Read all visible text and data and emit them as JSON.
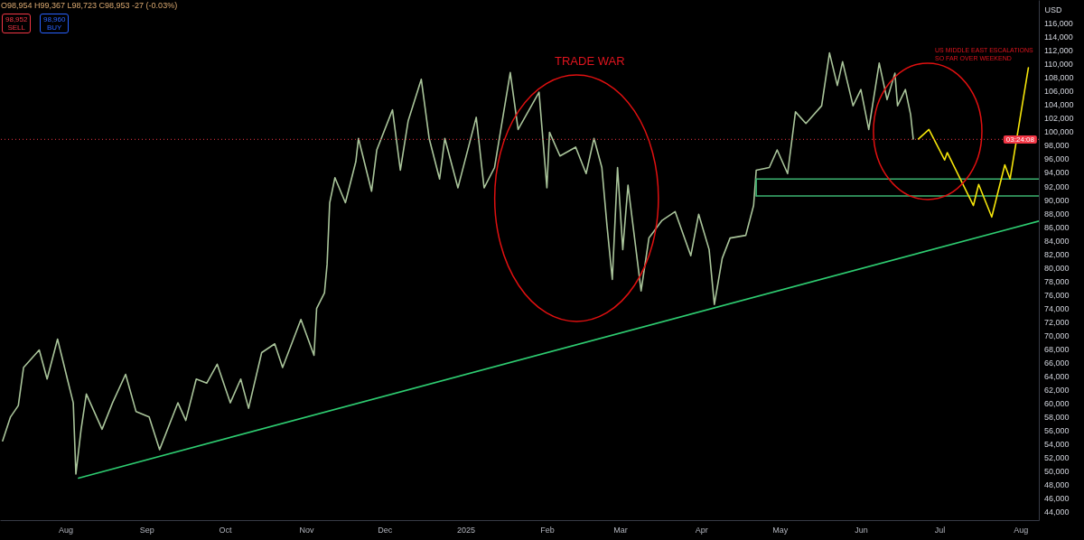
{
  "chart_data": {
    "type": "line",
    "ylabel": "USD",
    "annotations": [
      "O98,954 H99,367 L98,723 C98,953 -27 (-0.03%)",
      "98,952",
      "SELL",
      "98,960",
      "BUY",
      "TRADE WAR",
      "US MIDDLE EAST ESCALATIONS",
      "SO FAR OVER WEEKEND",
      "03:24:08"
    ],
    "xlim": [
      "2024-07-07",
      "2025-08-08"
    ],
    "xticks": [
      {
        "value": "2024-08-01",
        "label": "Aug"
      },
      {
        "value": "2024-09-01",
        "label": "Sep"
      },
      {
        "value": "2024-10-01",
        "label": "Oct"
      },
      {
        "value": "2024-11-01",
        "label": "Nov"
      },
      {
        "value": "2024-12-01",
        "label": "Dec"
      },
      {
        "value": "2025-01-01",
        "label": "2025"
      },
      {
        "value": "2025-02-01",
        "label": "Feb"
      },
      {
        "value": "2025-03-01",
        "label": "Mar"
      },
      {
        "value": "2025-04-01",
        "label": "Apr"
      },
      {
        "value": "2025-05-01",
        "label": "May"
      },
      {
        "value": "2025-06-01",
        "label": "Jun"
      },
      {
        "value": "2025-07-01",
        "label": "Jul"
      },
      {
        "value": "2025-08-01",
        "label": "Aug"
      }
    ],
    "ylim": [
      42800,
      119500
    ],
    "yticks": [
      {
        "value": 44000,
        "label": "44,000"
      },
      {
        "value": 46000,
        "label": "46,000"
      },
      {
        "value": 48000,
        "label": "48,000"
      },
      {
        "value": 50000,
        "label": "50,000"
      },
      {
        "value": 52000,
        "label": "52,000"
      },
      {
        "value": 54000,
        "label": "54,000"
      },
      {
        "value": 56000,
        "label": "56,000"
      },
      {
        "value": 58000,
        "label": "58,000"
      },
      {
        "value": 60000,
        "label": "60,000"
      },
      {
        "value": 62000,
        "label": "62,000"
      },
      {
        "value": 64000,
        "label": "64,000"
      },
      {
        "value": 66000,
        "label": "66,000"
      },
      {
        "value": 68000,
        "label": "68,000"
      },
      {
        "value": 70000,
        "label": "70,000"
      },
      {
        "value": 72000,
        "label": "72,000"
      },
      {
        "value": 74000,
        "label": "74,000"
      },
      {
        "value": 76000,
        "label": "76,000"
      },
      {
        "value": 78000,
        "label": "78,000"
      },
      {
        "value": 80000,
        "label": "80,000"
      },
      {
        "value": 82000,
        "label": "82,000"
      },
      {
        "value": 84000,
        "label": "84,000"
      },
      {
        "value": 86000,
        "label": "86,000"
      },
      {
        "value": 88000,
        "label": "88,000"
      },
      {
        "value": 90000,
        "label": "90,000"
      },
      {
        "value": 92000,
        "label": "92,000"
      },
      {
        "value": 94000,
        "label": "94,000"
      },
      {
        "value": 96000,
        "label": "96,000"
      },
      {
        "value": 98000,
        "label": "98,000"
      },
      {
        "value": 100000,
        "label": "100,000"
      },
      {
        "value": 102000,
        "label": "102,000"
      },
      {
        "value": 104000,
        "label": "104,000"
      },
      {
        "value": 106000,
        "label": "106,000"
      },
      {
        "value": 108000,
        "label": "108,000"
      },
      {
        "value": 110000,
        "label": "110,000"
      },
      {
        "value": 112000,
        "label": "112,000"
      },
      {
        "value": 114000,
        "label": "114,000"
      },
      {
        "value": 116000,
        "label": "116,000"
      }
    ],
    "ref_lines": [
      {
        "axis": "y",
        "value": 98953,
        "color": "#f23645",
        "line_style": "dotted"
      }
    ],
    "series": [
      {
        "color": "#a9c49a",
        "x": [
          "2024-07-08",
          "2024-07-11",
          "2024-07-14",
          "2024-07-16",
          "2024-07-22",
          "2024-07-25",
          "2024-07-29",
          "2024-08-02",
          "2024-08-04",
          "2024-08-05",
          "2024-08-07",
          "2024-08-09",
          "2024-08-15",
          "2024-08-19",
          "2024-08-24",
          "2024-08-28",
          "2024-09-02",
          "2024-09-06",
          "2024-09-13",
          "2024-09-16",
          "2024-09-20",
          "2024-09-24",
          "2024-09-28",
          "2024-10-03",
          "2024-10-07",
          "2024-10-10",
          "2024-10-15",
          "2024-10-20",
          "2024-10-23",
          "2024-10-30",
          "2024-11-04",
          "2024-11-05",
          "2024-11-08",
          "2024-11-09",
          "2024-11-10",
          "2024-11-12",
          "2024-11-16",
          "2024-11-20",
          "2024-11-21",
          "2024-11-26",
          "2024-11-28",
          "2024-12-04",
          "2024-12-07",
          "2024-12-10",
          "2024-12-15",
          "2024-12-18",
          "2024-12-22",
          "2024-12-24",
          "2024-12-29",
          "2025-01-05",
          "2025-01-08",
          "2025-01-12",
          "2025-01-18",
          "2025-01-21",
          "2025-01-29",
          "2025-02-01",
          "2025-02-02",
          "2025-02-06",
          "2025-02-12",
          "2025-02-16",
          "2025-02-19",
          "2025-02-22",
          "2025-02-24",
          "2025-02-26",
          "2025-02-28",
          "2025-03-02",
          "2025-03-04",
          "2025-03-09",
          "2025-03-12",
          "2025-03-17",
          "2025-03-22",
          "2025-03-28",
          "2025-03-31",
          "2025-04-04",
          "2025-04-06",
          "2025-04-09",
          "2025-04-12",
          "2025-04-18",
          "2025-04-21",
          "2025-04-22",
          "2025-04-27",
          "2025-04-30",
          "2025-05-04",
          "2025-05-07",
          "2025-05-11",
          "2025-05-17",
          "2025-05-20",
          "2025-05-23",
          "2025-05-25",
          "2025-05-29",
          "2025-06-01",
          "2025-06-04",
          "2025-06-08",
          "2025-06-11",
          "2025-06-14",
          "2025-06-15",
          "2025-06-18",
          "2025-06-20",
          "2025-06-21"
        ],
        "values": [
          54500,
          58000,
          59700,
          65300,
          67900,
          63600,
          69500,
          63200,
          60100,
          49600,
          56200,
          61400,
          56200,
          60100,
          64300,
          58800,
          58000,
          53200,
          60100,
          57500,
          63600,
          63000,
          65800,
          60100,
          63600,
          59300,
          67500,
          68800,
          65300,
          72400,
          67100,
          74000,
          76300,
          80500,
          89600,
          93300,
          89600,
          95700,
          99100,
          91300,
          97400,
          103300,
          94400,
          101700,
          107800,
          99100,
          93100,
          99100,
          91800,
          102200,
          91800,
          94800,
          108800,
          100400,
          105900,
          91800,
          100000,
          96500,
          97800,
          93900,
          99100,
          94800,
          86100,
          78300,
          94800,
          82700,
          92200,
          76600,
          84400,
          87000,
          88300,
          81800,
          87900,
          82700,
          74600,
          81400,
          84400,
          84800,
          89200,
          94400,
          94800,
          97400,
          93900,
          103000,
          101300,
          103900,
          111700,
          106900,
          110400,
          103900,
          106300,
          100400,
          110200,
          104800,
          108700,
          103900,
          106300,
          102600,
          99000
        ]
      },
      {
        "color": "#2ecc71",
        "x": [
          "2024-08-06",
          "2025-08-08"
        ],
        "values": [
          49000,
          86900
        ]
      },
      {
        "color": "#3cb371",
        "x": [
          "2025-04-22",
          "2025-08-08"
        ],
        "values": [
          93100,
          93100
        ]
      },
      {
        "color": "#3cb371",
        "x": [
          "2025-04-22",
          "2025-08-08"
        ],
        "values": [
          90600,
          90600
        ]
      },
      {
        "color": "#3cb371",
        "x": [
          "2025-04-22",
          "2025-04-22"
        ],
        "values": [
          93100,
          90600
        ]
      },
      {
        "color": "#f5e50a",
        "x": [
          "2025-06-23",
          "2025-06-27",
          "2025-07-03",
          "2025-07-04",
          "2025-07-14",
          "2025-07-16",
          "2025-07-21",
          "2025-07-26",
          "2025-07-28",
          "2025-08-04"
        ],
        "values": [
          99000,
          100400,
          95900,
          97000,
          89200,
          92300,
          87500,
          95200,
          93100,
          109500
        ]
      }
    ]
  }
}
